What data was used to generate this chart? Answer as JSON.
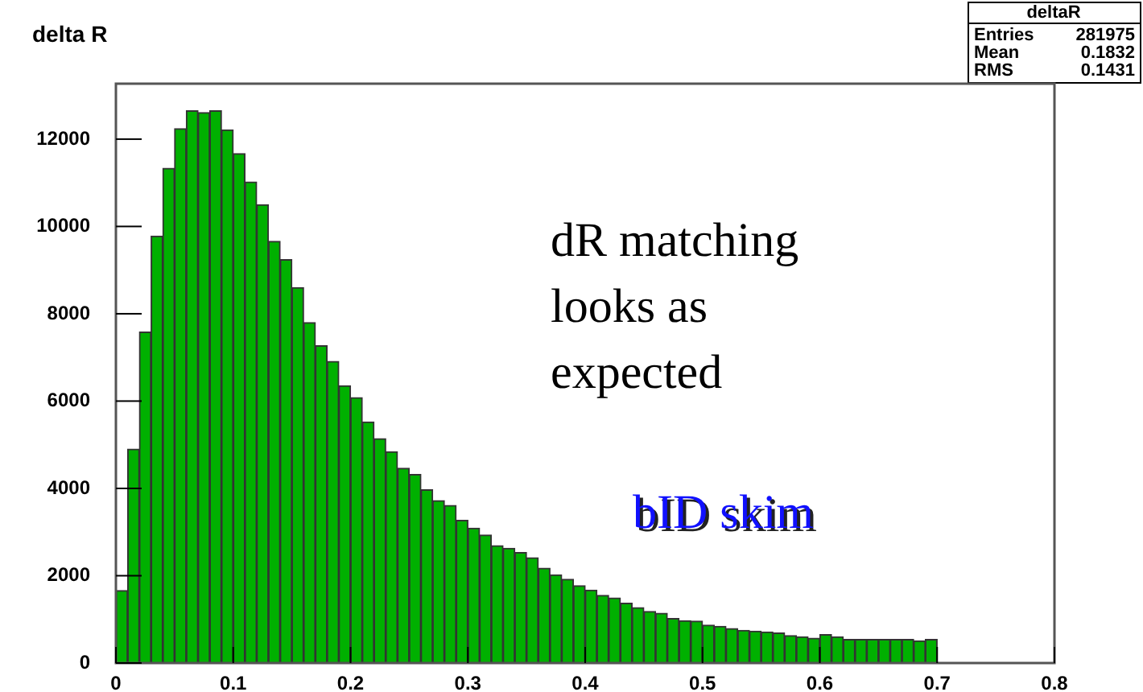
{
  "chart_data": {
    "type": "histogram",
    "title": "delta R",
    "bins": [
      0,
      0.01,
      0.02,
      0.03,
      0.04,
      0.05,
      0.06,
      0.07,
      0.08,
      0.09,
      0.1,
      0.11,
      0.12,
      0.13,
      0.14,
      0.15,
      0.16,
      0.17,
      0.18,
      0.19,
      0.2,
      0.21,
      0.22,
      0.23,
      0.24,
      0.25,
      0.26,
      0.27,
      0.28,
      0.29,
      0.3,
      0.31,
      0.32,
      0.33,
      0.34,
      0.35,
      0.36,
      0.37,
      0.38,
      0.39,
      0.4,
      0.41,
      0.42,
      0.43,
      0.44,
      0.45,
      0.46,
      0.47,
      0.48,
      0.49,
      0.5,
      0.51,
      0.52,
      0.53,
      0.54,
      0.55,
      0.56,
      0.57,
      0.58,
      0.59,
      0.6,
      0.61,
      0.62,
      0.63,
      0.64,
      0.65,
      0.66,
      0.67,
      0.68,
      0.69,
      0.7
    ],
    "values": [
      1660,
      4900,
      7580,
      9780,
      11330,
      12240,
      12650,
      12610,
      12650,
      12210,
      11670,
      11020,
      10500,
      9660,
      9240,
      8600,
      7800,
      7270,
      6910,
      6350,
      6080,
      5520,
      5140,
      4840,
      4460,
      4320,
      3970,
      3720,
      3610,
      3270,
      3090,
      2930,
      2690,
      2630,
      2530,
      2410,
      2170,
      2020,
      1920,
      1770,
      1670,
      1550,
      1490,
      1370,
      1270,
      1180,
      1140,
      1020,
      970,
      960,
      870,
      840,
      790,
      750,
      730,
      710,
      690,
      630,
      600,
      570,
      650,
      600,
      540,
      540,
      540,
      540,
      540,
      540,
      510,
      540
    ],
    "color": "#00b000",
    "xlim": [
      0,
      0.8
    ],
    "xticks": [
      0,
      0.1,
      0.2,
      0.3,
      0.4,
      0.5,
      0.6,
      0.7,
      0.8
    ],
    "ylim": [
      0,
      13270
    ],
    "yticks": [
      0,
      2000,
      4000,
      6000,
      8000,
      10000,
      12000
    ],
    "grid": false,
    "legend": false,
    "annotations": [
      "deltaR",
      "Entries 281975",
      "Mean 0.1832",
      "RMS 0.1431",
      "dR matching looks as expected",
      "bID skim"
    ]
  }
}
